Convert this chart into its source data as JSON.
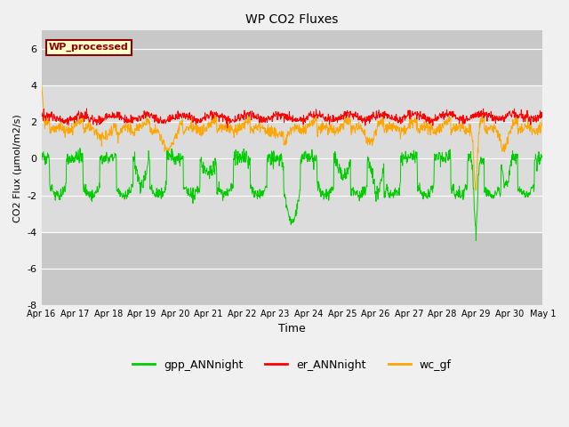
{
  "title": "WP CO2 Fluxes",
  "xlabel": "Time",
  "ylabel": "CO2 Flux (μmol/m2/s)",
  "ylim": [
    -8,
    7
  ],
  "yticks": [
    -8,
    -6,
    -4,
    -2,
    0,
    2,
    4,
    6
  ],
  "xlim_days": [
    0,
    15
  ],
  "date_labels": [
    "Apr 16",
    "Apr 17",
    "Apr 18",
    "Apr 19",
    "Apr 20",
    "Apr 21",
    "Apr 22",
    "Apr 23",
    "Apr 24",
    "Apr 25",
    "Apr 26",
    "Apr 27",
    "Apr 28",
    "Apr 29",
    "Apr 30",
    "May 1"
  ],
  "annotation_text": "WP_processed",
  "annotation_color": "#8B0000",
  "annotation_bg": "#FFFFCC",
  "line_colors": {
    "gpp": "#00CC00",
    "er": "#FF0000",
    "wc": "#FFA500"
  },
  "legend_labels": [
    "gpp_ANNnight",
    "er_ANNnight",
    "wc_gf"
  ],
  "background_inner": "#E0E0E0",
  "background_outer": "#F0F0F0",
  "band_mid_color": "#DCDCDC",
  "band_outer_color": "#C8C8C8",
  "grid_color": "#FFFFFF",
  "n_points": 1440
}
